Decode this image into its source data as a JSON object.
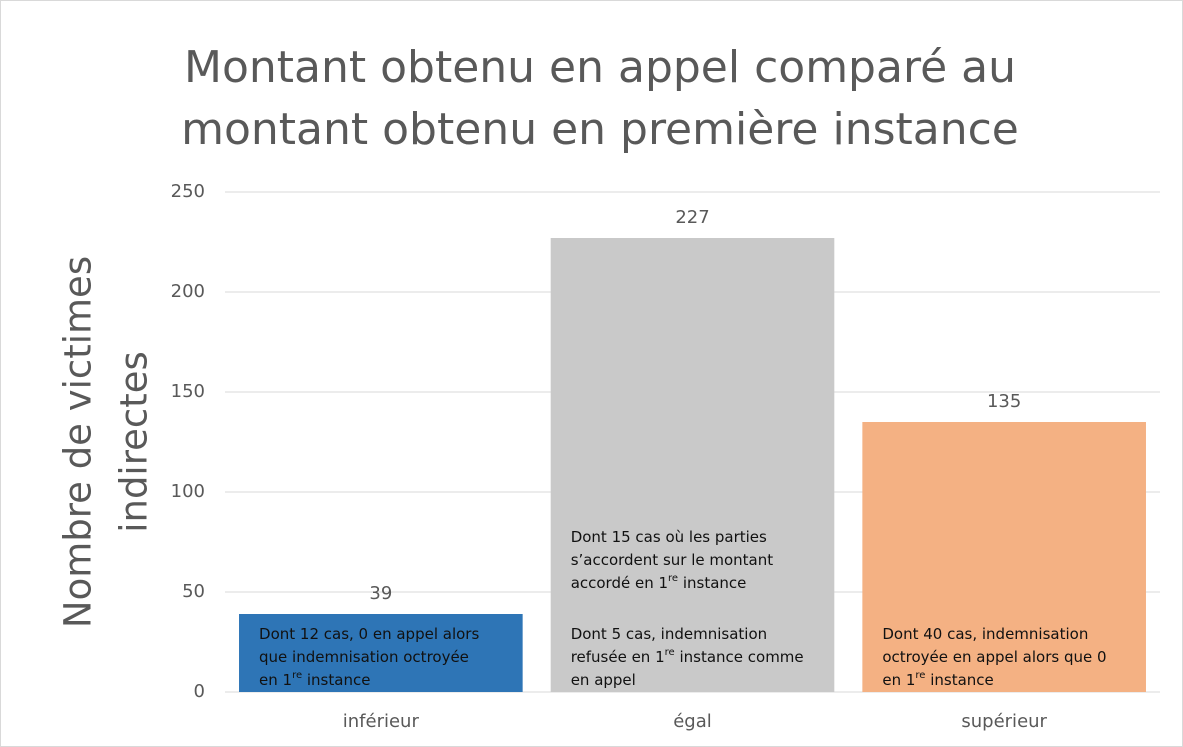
{
  "chart_data": {
    "type": "bar",
    "title": [
      "Montant obtenu en appel comparé au",
      "montant obtenu en première instance"
    ],
    "ylabel": [
      "Nombre de victimes",
      "indirectes"
    ],
    "categories": [
      "inférieur",
      "égal",
      "supérieur"
    ],
    "values": [
      39,
      227,
      135
    ],
    "colors": [
      "#2e75b6",
      "#c9c9c9",
      "#f4b183"
    ],
    "ylim": [
      0,
      250
    ],
    "yticks": [
      0,
      50,
      100,
      150,
      200,
      250
    ],
    "grid": true,
    "notes": [
      [
        [
          [
            "Dont 12 cas, 0 en appel alors"
          ],
          [
            "que indemnisation octroyée"
          ],
          [
            "en 1",
            "re",
            " instance"
          ]
        ]
      ],
      [
        [
          [
            "Dont 15 cas où les parties"
          ],
          [
            "s’accordent sur le montant"
          ],
          [
            "accordé en 1",
            "re",
            " instance"
          ]
        ],
        [
          [
            "Dont 5 cas, indemnisation"
          ],
          [
            "refusée en 1",
            "re",
            " instance comme"
          ],
          [
            "en appel"
          ]
        ]
      ],
      [
        [
          [
            "Dont 40 cas, indemnisation"
          ],
          [
            "octroyée en appel alors que 0"
          ],
          [
            "en 1",
            "re",
            " instance"
          ]
        ]
      ]
    ]
  }
}
